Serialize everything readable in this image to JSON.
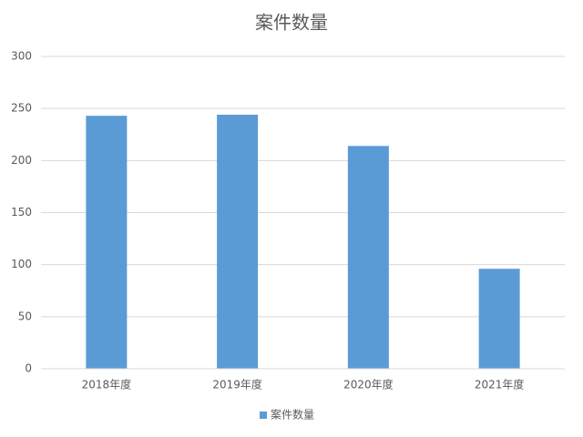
{
  "chart_data": {
    "type": "bar",
    "title": "案件数量",
    "categories": [
      "2018年度",
      "2019年度",
      "2020年度",
      "2021年度"
    ],
    "series": [
      {
        "name": "案件数量",
        "color": "#5b9bd5",
        "values": [
          243,
          244,
          214,
          96
        ]
      }
    ],
    "ylim": [
      0,
      300
    ],
    "yticks": [
      0,
      50,
      100,
      150,
      200,
      250,
      300
    ],
    "grid": true,
    "legend": "bottom"
  }
}
